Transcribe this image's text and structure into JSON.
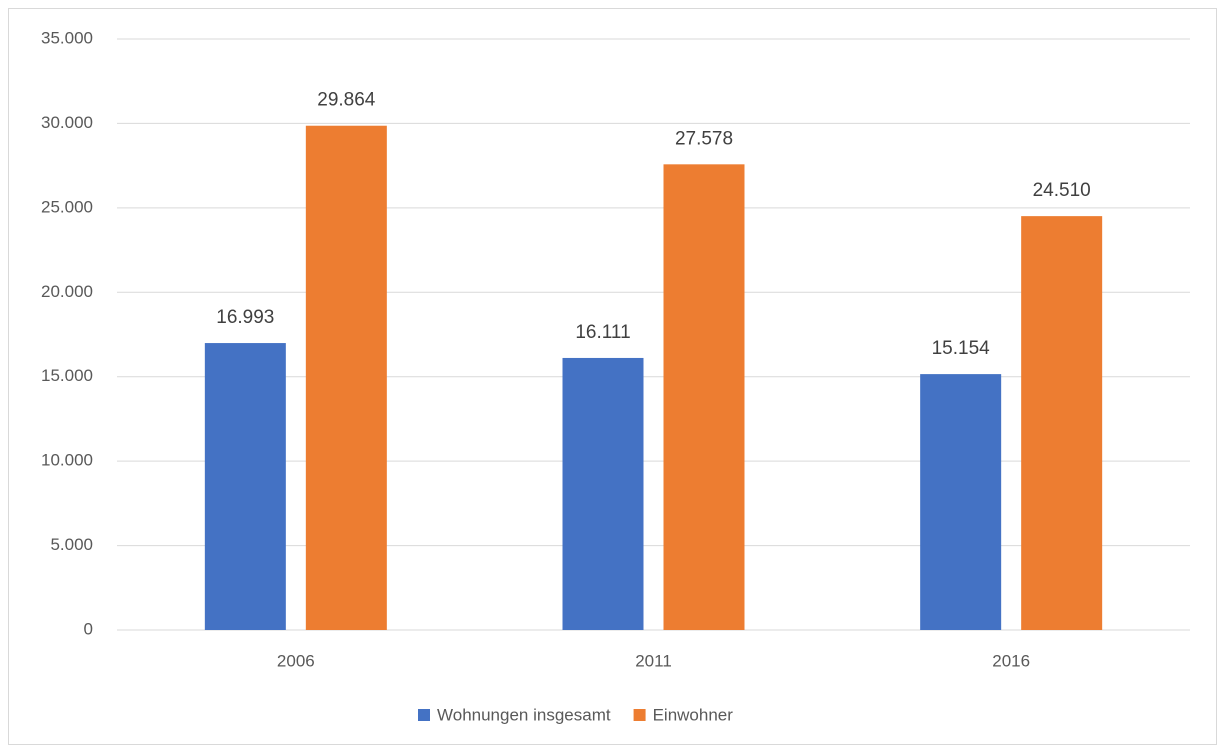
{
  "chart_data": {
    "type": "bar",
    "categories": [
      "2006",
      "2011",
      "2016"
    ],
    "series": [
      {
        "name": "Wohnungen insgesamt",
        "color": "#4472c4",
        "values": [
          16993,
          16111,
          15154
        ],
        "value_labels": [
          "16.993",
          "16.111",
          "15.154"
        ]
      },
      {
        "name": "Einwohner",
        "color": "#ed7d31",
        "values": [
          29864,
          27578,
          24510
        ],
        "value_labels": [
          "29.864",
          "27.578",
          "24.510"
        ]
      }
    ],
    "ylim": [
      0,
      35000
    ],
    "yticks": [
      0,
      {
        "value": 5000,
        "label": "5.000"
      },
      {
        "value": 10000,
        "label": "10.000"
      },
      {
        "value": 15000,
        "label": "15.000"
      },
      {
        "value": 20000,
        "label": "20.000"
      },
      {
        "value": 25000,
        "label": "25.000"
      },
      {
        "value": 30000,
        "label": "30.000"
      },
      {
        "value": 35000,
        "label": "35.000"
      }
    ],
    "grid": true,
    "legend": "bottom"
  }
}
